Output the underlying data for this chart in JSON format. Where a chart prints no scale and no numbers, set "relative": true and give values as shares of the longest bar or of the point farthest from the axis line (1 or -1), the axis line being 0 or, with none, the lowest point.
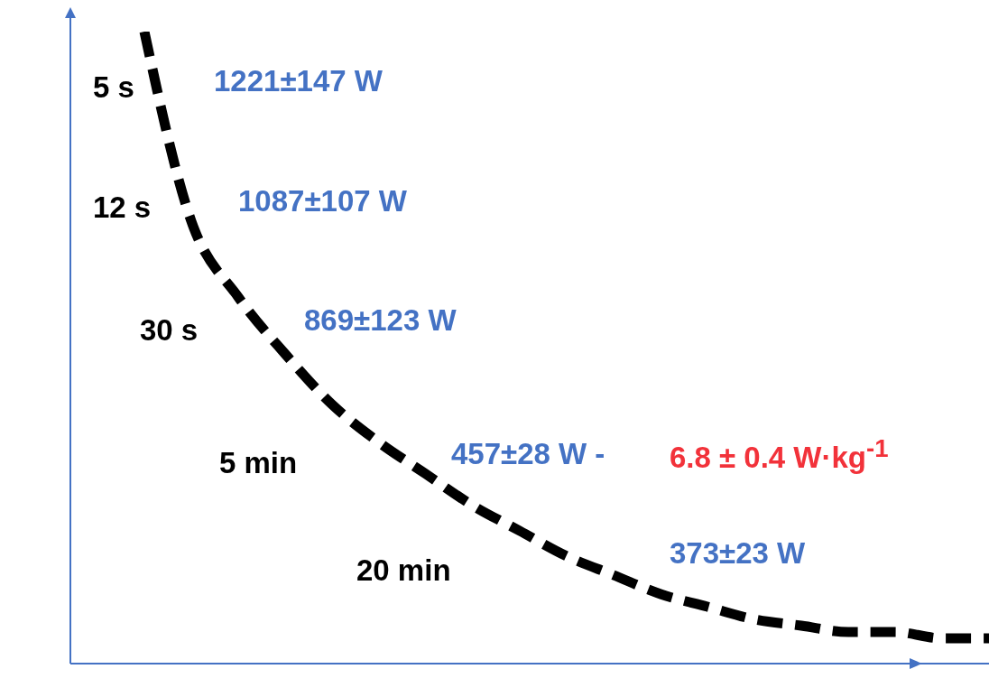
{
  "chart_data": {
    "type": "line",
    "relative": true,
    "categories": [
      null,
      null,
      null,
      null,
      null,
      null,
      null,
      null,
      null,
      null,
      null,
      null,
      null,
      null,
      null,
      null,
      null,
      null,
      null
    ],
    "values": [
      1.0,
      0.7,
      0.58,
      0.49,
      0.41,
      0.35,
      0.3,
      0.25,
      0.21,
      0.17,
      0.14,
      0.11,
      0.09,
      0.07,
      0.06,
      0.05,
      0.05,
      0.04,
      0.04
    ],
    "color": "#000000",
    "line_style": "dashed",
    "marker": "none",
    "annotations": [
      "5 s",
      "1221±147 W",
      "12 s",
      "1087±107 W",
      "30 s",
      "869±123 W",
      "5 min",
      "457±28 W -",
      "6.8 ± 0.4 W·kg$^{-1}$",
      "20 min",
      "373±23 W"
    ]
  }
}
